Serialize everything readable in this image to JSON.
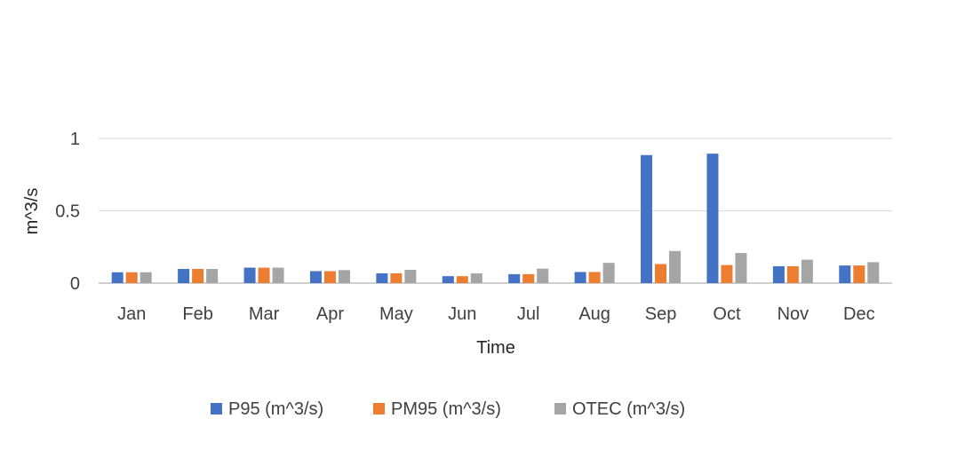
{
  "chart_data": {
    "type": "bar",
    "title": "",
    "xlabel": "Time",
    "ylabel": "m^3/s",
    "ylim": [
      0,
      1
    ],
    "yticks": [
      {
        "value": 0,
        "label": "0"
      },
      {
        "value": 0.5,
        "label": "0.5"
      },
      {
        "value": 1,
        "label": "1"
      }
    ],
    "grid": true,
    "legend_position": "bottom",
    "categories": [
      "Jan",
      "Feb",
      "Mar",
      "Apr",
      "May",
      "Jun",
      "Jul",
      "Aug",
      "Sep",
      "Oct",
      "Nov",
      "Dec"
    ],
    "series": [
      {
        "name": "P95 (m^3/s)",
        "color": "#4472C4",
        "values": [
          0.075,
          0.098,
          0.107,
          0.083,
          0.068,
          0.048,
          0.062,
          0.077,
          0.885,
          0.895,
          0.117,
          0.122
        ]
      },
      {
        "name": "PM95 (m^3/s)",
        "color": "#ED7D31",
        "values": [
          0.075,
          0.098,
          0.107,
          0.083,
          0.068,
          0.048,
          0.062,
          0.077,
          0.132,
          0.125,
          0.117,
          0.122
        ]
      },
      {
        "name": "OTEC (m^3/s)",
        "color": "#A5A5A5",
        "values": [
          0.075,
          0.098,
          0.107,
          0.09,
          0.092,
          0.068,
          0.1,
          0.14,
          0.222,
          0.208,
          0.162,
          0.145
        ]
      }
    ]
  }
}
